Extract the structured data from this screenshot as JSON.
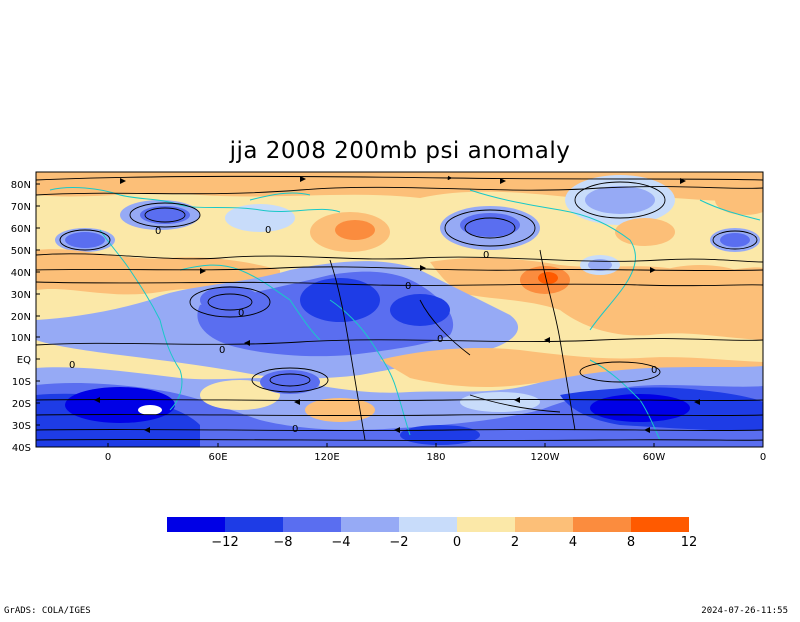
{
  "title": "jja 2008 200mb psi anomaly",
  "footer": {
    "left": "GrADS: COLA/IGES",
    "right": "2024-07-26-11:55"
  },
  "axes": {
    "lat_labels": [
      "80N",
      "70N",
      "60N",
      "50N",
      "40N",
      "30N",
      "20N",
      "10N",
      "EQ",
      "10S",
      "20S",
      "30S",
      "40S"
    ],
    "lon_labels": [
      "0",
      "60E",
      "120E",
      "180",
      "120W",
      "60W",
      "0"
    ]
  },
  "colorbar": {
    "colors": [
      "#0000e6",
      "#1e3ce6",
      "#5a6ef0",
      "#96aaf5",
      "#c8dcfa",
      "#fbe8a8",
      "#fcbf78",
      "#fb8c3e",
      "#ff5a00"
    ],
    "labels": [
      "−12",
      "−8",
      "−4",
      "−2",
      "0",
      "2",
      "4",
      "8",
      "12"
    ]
  },
  "contour_labels": [
    "0",
    "0",
    "0",
    "0",
    "0",
    "0",
    "0",
    "0",
    "0",
    "0"
  ]
}
